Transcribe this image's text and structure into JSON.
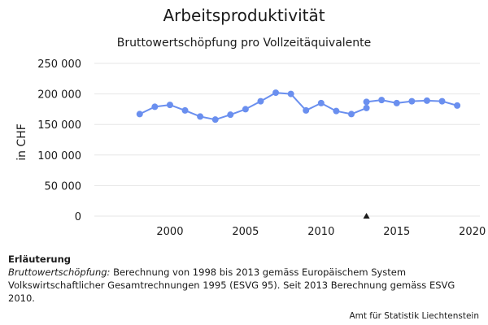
{
  "chart_data": {
    "type": "line",
    "title": "Arbeitsproduktivität",
    "subtitle": "Bruttowertschöpfung pro Vollzeitäquivalente",
    "ylabel": "in CHF",
    "xlabel": "",
    "ylim": [
      0,
      250000
    ],
    "xlim": [
      1995,
      2020.5
    ],
    "y_ticks": [
      0,
      50000,
      100000,
      150000,
      200000,
      250000
    ],
    "y_tick_labels": [
      "0",
      "50 000",
      "100 000",
      "150 000",
      "200 000",
      "250 000"
    ],
    "x_ticks": [
      2000,
      2005,
      2010,
      2015,
      2020
    ],
    "x_tick_labels": [
      "2000",
      "2005",
      "2010",
      "2015",
      "2020"
    ],
    "grid": "horizontal",
    "legend": "none",
    "color": "#6a8fef",
    "series": [
      {
        "x": [
          1998,
          1999,
          2000,
          2001,
          2002,
          2003,
          2004,
          2005,
          2006,
          2007,
          2008,
          2009,
          2010,
          2011,
          2012,
          2013
        ],
        "y": [
          167000,
          179000,
          182000,
          173000,
          163000,
          158000,
          166000,
          175000,
          188000,
          202000,
          200000,
          173000,
          185000,
          172000,
          167000,
          177000
        ]
      },
      {
        "x": [
          2013,
          2014,
          2015,
          2016,
          2017,
          2018,
          2019
        ],
        "y": [
          187000,
          190000,
          185000,
          188000,
          189000,
          188000,
          181000
        ]
      }
    ],
    "markers_on_axis": [
      {
        "x": 2013,
        "symbol": "▲"
      }
    ]
  },
  "notes": {
    "heading": "Erläuterung",
    "term": "Bruttowertschöpfung:",
    "text": " Berechnung von 1998 bis 2013 gemäss Europäischem System Volkswirtschaftlicher Gesamtrechnungen 1995 (ESVG 95). Seit 2013 Berechnung gemäss ESVG 2010."
  },
  "source": "Amt für Statistik Liechtenstein"
}
